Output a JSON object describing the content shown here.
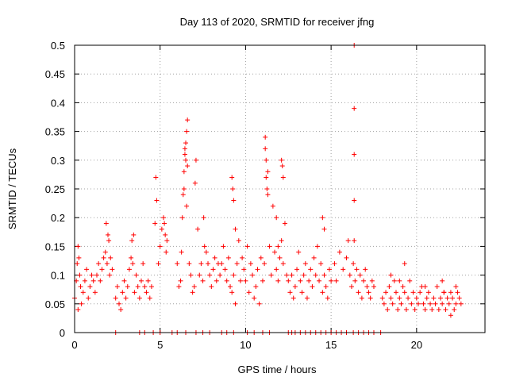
{
  "chart_data": {
    "type": "scatter",
    "title": "Day 113 of 2020, SRMTID for receiver jfng",
    "xlabel": "GPS time / hours",
    "ylabel": "SRMTID / TECUs",
    "xlim": [
      0,
      24
    ],
    "ylim": [
      0,
      0.5
    ],
    "xticks": [
      0,
      5,
      10,
      15,
      20
    ],
    "xtick_labels": [
      "0",
      "5",
      "10",
      "15",
      "20"
    ],
    "yticks": [
      0,
      0.05,
      0.1,
      0.15,
      0.2,
      0.25,
      0.3,
      0.35,
      0.4,
      0.45,
      0.5
    ],
    "ytick_labels": [
      "0",
      "0.05",
      "0.1",
      "0.15",
      "0.2",
      "0.25",
      "0.3",
      "0.35",
      "0.4",
      "0.45",
      "0.5"
    ],
    "grid": true,
    "marker": "+",
    "marker_color": "#ff0000",
    "series": [
      {
        "name": "SRMTID",
        "x": [
          0.0,
          0.1,
          0.15,
          0.2,
          0.3,
          0.35,
          0.4,
          0.5,
          0.6,
          0.7,
          0.8,
          0.9,
          1.0,
          1.1,
          1.2,
          1.3,
          1.4,
          1.5,
          1.6,
          1.7,
          1.8,
          1.9,
          2.0,
          2.1,
          2.2,
          1.85,
          1.95,
          2.05,
          0.2,
          0.25,
          2.4,
          2.5,
          2.6,
          2.7,
          2.8,
          2.9,
          3.0,
          3.1,
          3.2,
          3.3,
          3.4,
          3.5,
          3.6,
          3.7,
          3.8,
          3.9,
          4.0,
          4.1,
          4.2,
          4.3,
          4.4,
          4.5,
          3.35,
          3.45,
          4.7,
          4.8,
          4.9,
          5.0,
          5.1,
          5.2,
          5.3,
          5.4,
          4.75,
          5.25,
          5.35,
          6.0,
          6.1,
          6.2,
          6.25,
          6.3,
          6.35,
          6.4,
          6.45,
          6.5,
          6.55,
          6.6,
          6.7,
          6.8,
          6.9,
          7.0,
          7.05,
          7.1,
          7.2,
          6.45,
          6.5,
          6.55,
          6.4,
          6.6,
          7.3,
          7.4,
          7.5,
          7.6,
          7.7,
          7.8,
          7.9,
          8.0,
          8.1,
          8.2,
          8.3,
          8.4,
          7.55,
          8.5,
          8.6,
          8.7,
          8.8,
          8.9,
          9.0,
          9.1,
          9.2,
          9.3,
          9.4,
          9.5,
          9.6,
          9.7,
          9.8,
          9.9,
          9.2,
          9.25,
          9.3,
          9.4,
          10.0,
          10.1,
          10.2,
          10.3,
          10.4,
          10.5,
          10.6,
          10.7,
          10.8,
          10.9,
          11.0,
          11.1,
          11.15,
          11.2,
          11.3,
          11.4,
          11.5,
          11.6,
          11.7,
          11.8,
          11.9,
          12.0,
          12.1,
          12.2,
          12.3,
          12.4,
          11.15,
          11.2,
          11.25,
          11.3,
          11.8,
          11.9,
          12.1,
          12.15,
          12.2,
          12.5,
          12.6,
          12.7,
          12.8,
          12.9,
          13.0,
          13.1,
          13.2,
          13.3,
          13.4,
          13.5,
          13.6,
          13.7,
          13.8,
          13.9,
          14.0,
          14.1,
          14.2,
          14.3,
          14.4,
          14.5,
          14.6,
          14.7,
          14.8,
          14.9,
          15.0,
          14.5,
          14.6,
          15.2,
          15.3,
          15.5,
          15.7,
          15.9,
          16.0,
          16.1,
          16.2,
          16.3,
          16.4,
          16.5,
          16.6,
          16.7,
          16.8,
          16.9,
          17.0,
          17.1,
          17.2,
          17.3,
          17.4,
          17.5,
          16.35,
          16.35,
          16.35,
          16.35,
          16.35,
          18.0,
          18.1,
          18.2,
          18.3,
          18.4,
          18.5,
          18.6,
          18.7,
          18.8,
          18.9,
          19.0,
          19.1,
          19.2,
          19.3,
          19.4,
          19.5,
          19.6,
          19.7,
          19.8,
          19.9,
          20.0,
          20.1,
          20.2,
          20.3,
          20.4,
          20.5,
          20.6,
          20.7,
          20.8,
          20.9,
          21.0,
          21.1,
          21.2,
          21.3,
          21.4,
          21.5,
          21.6,
          21.7,
          21.8,
          21.9,
          22.0,
          22.1,
          22.2,
          22.3,
          22.4,
          22.5,
          22.6,
          18.5,
          19.0,
          19.3,
          20.5,
          21.5,
          21.6,
          22.0,
          22.3,
          2.4,
          3.8,
          4.1,
          4.6,
          5.0,
          5.7,
          6.0,
          6.5,
          7.1,
          7.5,
          7.9,
          8.6,
          8.9,
          9.3,
          10.1,
          10.5,
          11.0,
          11.4,
          12.5,
          12.7,
          12.9,
          13.2,
          13.5,
          13.8,
          14.1,
          14.4,
          14.7,
          15.0,
          15.3,
          15.6,
          15.9,
          16.3,
          16.6,
          16.9,
          17.2,
          17.5,
          17.9
        ],
        "y": [
          0.06,
          0.09,
          0.12,
          0.15,
          0.1,
          0.08,
          0.05,
          0.07,
          0.09,
          0.11,
          0.06,
          0.08,
          0.1,
          0.09,
          0.07,
          0.1,
          0.12,
          0.09,
          0.11,
          0.13,
          0.14,
          0.12,
          0.16,
          0.13,
          0.11,
          0.19,
          0.17,
          0.1,
          0.04,
          0.13,
          0.06,
          0.08,
          0.05,
          0.04,
          0.07,
          0.09,
          0.06,
          0.08,
          0.11,
          0.13,
          0.12,
          0.07,
          0.1,
          0.08,
          0.06,
          0.09,
          0.12,
          0.08,
          0.07,
          0.09,
          0.06,
          0.08,
          0.16,
          0.17,
          0.19,
          0.23,
          0.12,
          0.15,
          0.18,
          0.2,
          0.17,
          0.16,
          0.27,
          0.19,
          0.14,
          0.12,
          0.08,
          0.09,
          0.14,
          0.2,
          0.24,
          0.28,
          0.31,
          0.33,
          0.35,
          0.37,
          0.12,
          0.1,
          0.07,
          0.08,
          0.26,
          0.3,
          0.18,
          0.32,
          0.3,
          0.22,
          0.25,
          0.29,
          0.1,
          0.12,
          0.09,
          0.15,
          0.14,
          0.12,
          0.1,
          0.08,
          0.11,
          0.13,
          0.09,
          0.12,
          0.2,
          0.1,
          0.12,
          0.15,
          0.11,
          0.09,
          0.13,
          0.08,
          0.07,
          0.1,
          0.05,
          0.12,
          0.16,
          0.09,
          0.13,
          0.11,
          0.27,
          0.25,
          0.23,
          0.18,
          0.09,
          0.15,
          0.07,
          0.12,
          0.1,
          0.06,
          0.08,
          0.11,
          0.05,
          0.13,
          0.09,
          0.12,
          0.34,
          0.3,
          0.28,
          0.15,
          0.1,
          0.22,
          0.14,
          0.11,
          0.09,
          0.13,
          0.16,
          0.12,
          0.19,
          0.1,
          0.32,
          0.27,
          0.25,
          0.24,
          0.2,
          0.15,
          0.3,
          0.29,
          0.27,
          0.09,
          0.07,
          0.1,
          0.06,
          0.08,
          0.11,
          0.14,
          0.09,
          0.07,
          0.1,
          0.12,
          0.06,
          0.09,
          0.11,
          0.08,
          0.13,
          0.1,
          0.15,
          0.09,
          0.12,
          0.07,
          0.1,
          0.08,
          0.06,
          0.11,
          0.09,
          0.2,
          0.18,
          0.12,
          0.09,
          0.14,
          0.11,
          0.13,
          0.16,
          0.1,
          0.08,
          0.12,
          0.09,
          0.11,
          0.07,
          0.1,
          0.06,
          0.09,
          0.11,
          0.08,
          0.07,
          0.06,
          0.09,
          0.08,
          0.5,
          0.39,
          0.31,
          0.23,
          0.16,
          0.06,
          0.05,
          0.07,
          0.04,
          0.08,
          0.06,
          0.05,
          0.09,
          0.07,
          0.04,
          0.06,
          0.05,
          0.08,
          0.07,
          0.04,
          0.06,
          0.09,
          0.05,
          0.07,
          0.04,
          0.06,
          0.05,
          0.07,
          0.08,
          0.05,
          0.04,
          0.06,
          0.07,
          0.05,
          0.04,
          0.06,
          0.05,
          0.08,
          0.04,
          0.06,
          0.05,
          0.07,
          0.04,
          0.06,
          0.05,
          0.07,
          0.06,
          0.04,
          0.05,
          0.07,
          0.06,
          0.05,
          0.1,
          0.09,
          0.12,
          0.08,
          0.09,
          0.07,
          0.03,
          0.08,
          0.0,
          0.0,
          0.0,
          0.0,
          0.0,
          0.0,
          0.0,
          0.0,
          0.0,
          0.0,
          0.0,
          0.0,
          0.0,
          0.0,
          0.0,
          0.0,
          0.0,
          0.0,
          0.0,
          0.0,
          0.0,
          0.0,
          0.0,
          0.0,
          0.0,
          0.0,
          0.0,
          0.0,
          0.0,
          0.0,
          0.0,
          0.0,
          0.0,
          0.0,
          0.0,
          0.0,
          0.0
        ]
      }
    ]
  }
}
